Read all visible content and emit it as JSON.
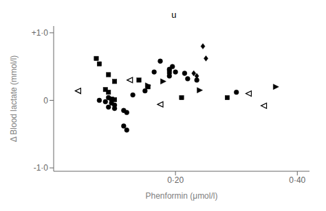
{
  "chart_data": {
    "type": "scatter",
    "xlabel": "Phenformin (μmol/l)",
    "ylabel": "Δ Blood lactate (mmol/l)",
    "annotation": "u",
    "xlim": [
      0,
      0.42
    ],
    "ylim": [
      -1.05,
      1.1
    ],
    "xticks": [
      {
        "value": 0.2,
        "label": "0·20"
      },
      {
        "value": 0.4,
        "label": "0·40"
      }
    ],
    "yticks": [
      {
        "value": -1.0,
        "label": "-1·0"
      },
      0,
      {
        "value": 1.0,
        "label": "+1·0"
      }
    ],
    "grid": false,
    "series": [
      {
        "marker": "circle",
        "color": "black",
        "x": [
          0.095,
          0.1,
          0.09,
          0.1,
          0.115,
          0.12,
          0.085,
          0.075,
          0.13,
          0.15,
          0.165,
          0.175,
          0.19,
          0.195,
          0.2,
          0.215,
          0.22,
          0.235,
          0.19,
          0.3,
          0.09,
          0.115,
          0.12
        ],
        "values": [
          -0.04,
          -0.07,
          -0.1,
          -0.12,
          -0.38,
          -0.44,
          -0.02,
          0.0,
          0.08,
          0.14,
          0.42,
          0.58,
          0.46,
          0.5,
          0.42,
          0.4,
          0.32,
          0.3,
          0.36,
          0.12,
          0.04,
          -0.15,
          -0.18
        ]
      },
      {
        "marker": "square",
        "color": "black",
        "x": [
          0.07,
          0.075,
          0.09,
          0.1,
          0.085,
          0.09,
          0.095,
          0.1,
          0.14,
          0.155,
          0.19,
          0.21,
          0.285
        ],
        "values": [
          0.62,
          0.54,
          0.38,
          0.28,
          0.16,
          0.12,
          0.02,
          0.01,
          0.3,
          0.2,
          0.42,
          0.04,
          0.04
        ]
      },
      {
        "marker": "triangle-left-open",
        "color": "black",
        "x": [
          0.04,
          0.125,
          0.175,
          0.32,
          0.345
        ],
        "values": [
          0.14,
          0.3,
          -0.06,
          0.1,
          -0.08
        ]
      },
      {
        "marker": "triangle-right",
        "color": "black",
        "x": [
          0.155,
          0.18,
          0.24,
          0.365
        ],
        "values": [
          0.22,
          0.28,
          0.15,
          0.2
        ]
      },
      {
        "marker": "diamond",
        "color": "black",
        "x": [
          0.245,
          0.25,
          0.23,
          0.235
        ],
        "values": [
          0.8,
          0.62,
          0.4,
          0.36
        ]
      }
    ]
  }
}
